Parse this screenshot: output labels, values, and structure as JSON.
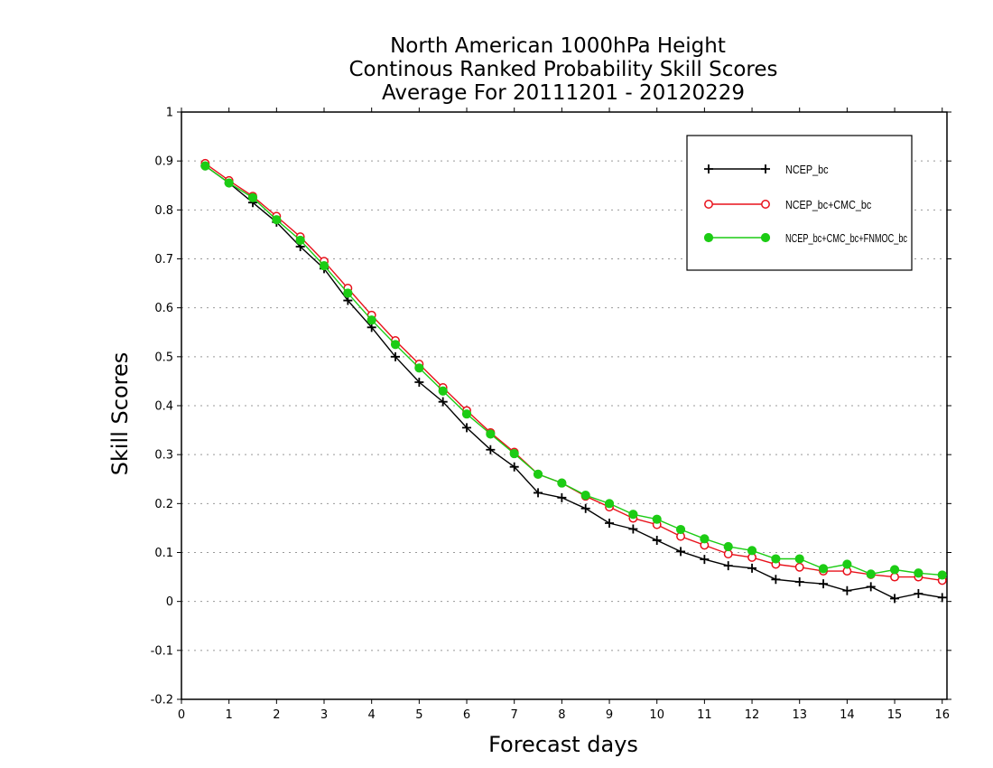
{
  "chart_data": {
    "type": "line",
    "title_lines": [
      "North American 1000hPa Height",
      "Continous Ranked Probability Skill Scores",
      "Average For 20111201 - 20120229"
    ],
    "xlabel": "Forecast days",
    "ylabel": "Skill Scores",
    "xlim": [
      0,
      16.1
    ],
    "ylim": [
      -0.2,
      1
    ],
    "x_ticks": [
      0,
      1,
      2,
      3,
      4,
      5,
      6,
      7,
      8,
      9,
      10,
      11,
      12,
      13,
      14,
      15,
      16
    ],
    "x_tick_labels": [
      "0",
      "1",
      "2",
      "3",
      "4",
      "5",
      "6",
      "7",
      "8",
      "9",
      "10",
      "11",
      "12",
      "13",
      "14",
      "15",
      "16"
    ],
    "y_ticks": [
      -0.2,
      -0.1,
      0,
      0.1,
      0.2,
      0.3,
      0.4,
      0.5,
      0.6,
      0.7,
      0.8,
      0.9,
      1
    ],
    "y_tick_labels": [
      "-0.2",
      "-0.1",
      "0",
      "0.1",
      "0.2",
      "0.3",
      "0.4",
      "0.5",
      "0.6",
      "0.7",
      "0.8",
      "0.9",
      "1"
    ],
    "grid": "horizontal dotted",
    "legend_position": "top-right",
    "x": [
      0.5,
      1,
      1.5,
      2,
      2.5,
      3,
      3.5,
      4,
      4.5,
      5,
      5.5,
      6,
      6.5,
      7,
      7.5,
      8,
      8.5,
      9,
      9.5,
      10,
      10.5,
      11,
      11.5,
      12,
      12.5,
      13,
      13.5,
      14,
      14.5,
      15,
      15.5,
      16
    ],
    "series": [
      {
        "name": "NCEP_bc",
        "color": "#000000",
        "marker": "plus",
        "values": [
          0.89,
          0.855,
          0.815,
          0.775,
          0.725,
          0.68,
          0.615,
          0.56,
          0.5,
          0.448,
          0.408,
          0.355,
          0.31,
          0.275,
          0.222,
          0.212,
          0.19,
          0.16,
          0.148,
          0.125,
          0.102,
          0.086,
          0.073,
          0.068,
          0.045,
          0.04,
          0.036,
          0.022,
          0.03,
          0.006,
          0.016,
          0.008
        ]
      },
      {
        "name": "NCEP_bc+CMC_bc",
        "color": "#e8101a",
        "marker": "open-circle",
        "values": [
          0.895,
          0.86,
          0.828,
          0.787,
          0.745,
          0.695,
          0.64,
          0.585,
          0.533,
          0.485,
          0.437,
          0.39,
          0.345,
          0.305,
          0.26,
          0.242,
          0.215,
          0.193,
          0.17,
          0.157,
          0.133,
          0.115,
          0.097,
          0.09,
          0.076,
          0.07,
          0.062,
          0.062,
          0.055,
          0.05,
          0.05,
          0.043
        ]
      },
      {
        "name": "NCEP_bc+CMC_bc+FNMOC_bc",
        "color": "#1ccc14",
        "marker": "filled-circle",
        "values": [
          0.89,
          0.855,
          0.825,
          0.78,
          0.738,
          0.686,
          0.63,
          0.575,
          0.525,
          0.477,
          0.43,
          0.383,
          0.342,
          0.302,
          0.26,
          0.242,
          0.217,
          0.2,
          0.178,
          0.168,
          0.147,
          0.128,
          0.112,
          0.104,
          0.087,
          0.087,
          0.067,
          0.076,
          0.056,
          0.065,
          0.058,
          0.054
        ]
      }
    ]
  }
}
